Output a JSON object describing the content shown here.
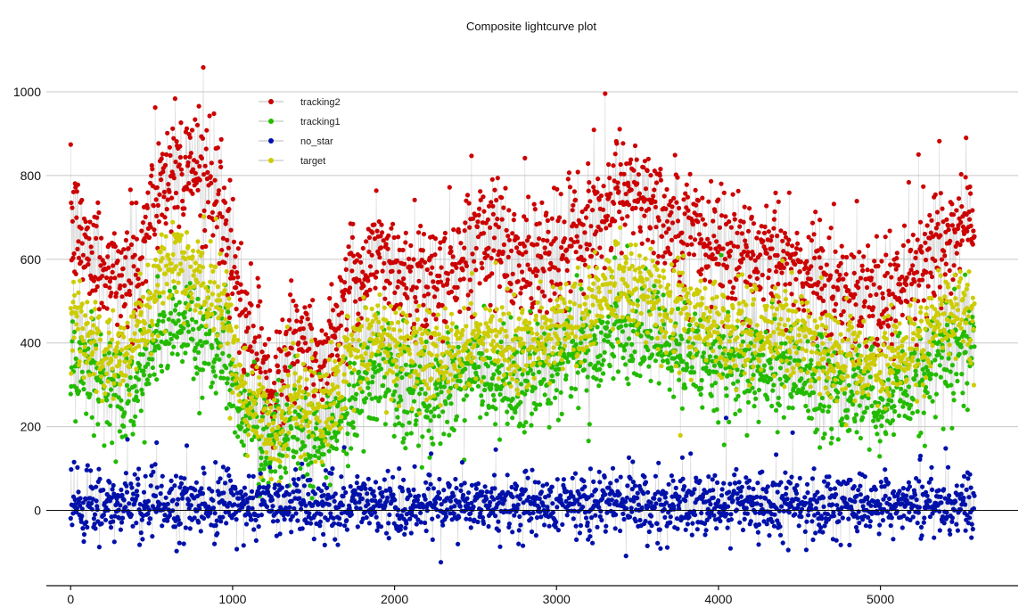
{
  "chart_data": {
    "type": "scatter",
    "title": "Composite lightcurve plot",
    "xlabel": "",
    "ylabel": "",
    "xlim": [
      -150,
      5850
    ],
    "ylim": [
      -180,
      1130
    ],
    "x_ticks": [
      0,
      1000,
      2000,
      3000,
      4000,
      5000
    ],
    "y_ticks": [
      0,
      200,
      400,
      600,
      800,
      1000
    ],
    "grid": "horizontal",
    "legend_position": "top-left",
    "n_points": 5580,
    "series": [
      {
        "name": "tracking2",
        "color": "#cc0000",
        "anchors_x": [
          0,
          200,
          400,
          550,
          650,
          800,
          950,
          1050,
          1200,
          1250,
          1400,
          1550,
          1700,
          1900,
          2100,
          2300,
          2500,
          2700,
          2900,
          3100,
          3300,
          3450,
          3600,
          3800,
          4000,
          4200,
          4400,
          4600,
          4800,
          5000,
          5200,
          5400,
          5580
        ],
        "anchors_y": [
          680,
          580,
          560,
          780,
          820,
          820,
          700,
          470,
          330,
          280,
          420,
          330,
          520,
          620,
          530,
          540,
          650,
          590,
          600,
          640,
          720,
          780,
          720,
          680,
          630,
          610,
          620,
          560,
          520,
          500,
          560,
          650,
          680
        ],
        "spread": 70,
        "spike": 220
      },
      {
        "name": "tracking1",
        "color": "#22bb00",
        "anchors_x": [
          0,
          200,
          400,
          550,
          650,
          800,
          950,
          1050,
          1200,
          1250,
          1400,
          1550,
          1700,
          1900,
          2100,
          2300,
          2500,
          2700,
          2900,
          3100,
          3300,
          3450,
          3600,
          3800,
          4000,
          4200,
          4400,
          4600,
          4800,
          5000,
          5200,
          5400,
          5580
        ],
        "anchors_y": [
          390,
          290,
          300,
          420,
          440,
          420,
          380,
          230,
          160,
          150,
          200,
          150,
          260,
          330,
          280,
          270,
          330,
          300,
          330,
          360,
          410,
          430,
          400,
          370,
          340,
          330,
          340,
          300,
          270,
          260,
          300,
          360,
          390
        ],
        "spread": 60,
        "spike": 150
      },
      {
        "name": "no_star",
        "color": "#0011aa",
        "anchors_x": [
          0,
          1000,
          2000,
          3000,
          4000,
          5000,
          5580
        ],
        "anchors_y": [
          15,
          15,
          15,
          15,
          15,
          15,
          15
        ],
        "spread": 35,
        "spike": 130
      },
      {
        "name": "target",
        "color": "#cccc00",
        "anchors_x": [
          0,
          200,
          400,
          550,
          650,
          800,
          950,
          1050,
          1200,
          1250,
          1400,
          1550,
          1700,
          1900,
          2100,
          2300,
          2500,
          2700,
          2900,
          3100,
          3300,
          3450,
          3600,
          3800,
          4000,
          4200,
          4400,
          4600,
          4800,
          5000,
          5200,
          5400,
          5580
        ],
        "anchors_y": [
          470,
          360,
          380,
          540,
          580,
          560,
          470,
          290,
          210,
          190,
          270,
          220,
          350,
          420,
          370,
          360,
          430,
          390,
          410,
          440,
          510,
          540,
          500,
          460,
          430,
          420,
          430,
          390,
          360,
          340,
          390,
          460,
          470
        ],
        "spread": 55,
        "spike": 140
      }
    ]
  }
}
